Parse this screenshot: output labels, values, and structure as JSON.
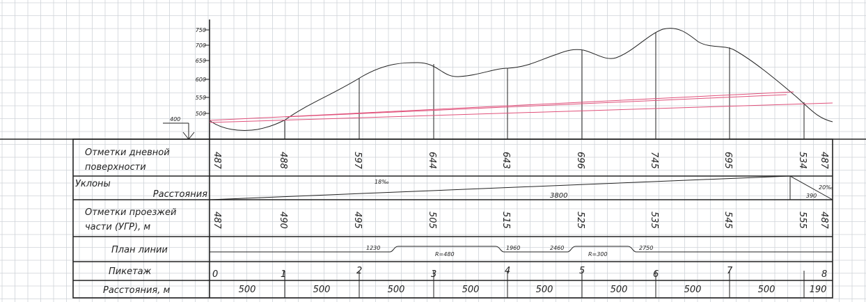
{
  "elevation_axis": {
    "ticks": [
      "750",
      "700",
      "650",
      "600",
      "550",
      "500"
    ],
    "datum_label": "400"
  },
  "table": {
    "headers": {
      "ground_marks": [
        "Отметки дневной",
        "поверхности"
      ],
      "slopes": "Уклоны",
      "slope_distances": "Расстояния",
      "road_marks": [
        "Отметки проезжей",
        "части (УГР), м"
      ],
      "plan": "План линии",
      "picket": "Пикетаж",
      "distances": "Расстояния, м"
    },
    "ground_marks": [
      "487",
      "488",
      "597",
      "644",
      "643",
      "696",
      "745",
      "695",
      "534",
      "487"
    ],
    "road_marks": [
      "487",
      "490",
      "495",
      "505",
      "515",
      "525",
      "535",
      "545",
      "555",
      "487"
    ],
    "slopes": [
      {
        "value": "18‰",
        "distance": "3800"
      },
      {
        "value": "20‰",
        "distance": "390"
      }
    ],
    "plan": {
      "curve1": {
        "start": "1230",
        "end": "1960",
        "radius": "R=480"
      },
      "curve2": {
        "start": "2460",
        "end": "2750",
        "radius": "R=300"
      }
    },
    "pickets": [
      "0",
      "1",
      "2",
      "3",
      "4",
      "5",
      "6",
      "7",
      "8"
    ],
    "distances": [
      "500",
      "500",
      "500",
      "500",
      "500",
      "500",
      "500",
      "500",
      "190"
    ]
  },
  "colors": {
    "linework": "#222222",
    "design_line": "#e0507a",
    "grid": "#cfd3d8"
  }
}
